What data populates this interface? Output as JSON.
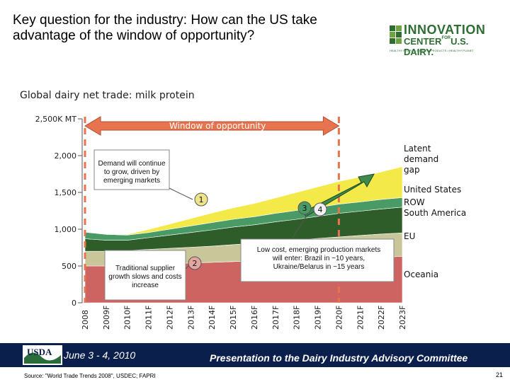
{
  "slide": {
    "title": "Key question for the industry: How can the US take advantage of the window of opportunity?",
    "logo_line1": "INNOVATION",
    "logo_line2": "CENTER",
    "logo_for": "FOR",
    "logo_line3": "U.S. DAIRY.",
    "logo_tag": "HEALTHY PEOPLE • HEALTHY PRODUCTS • HEALTHY PLANET",
    "footer_date": "June 3 - 4, 2010",
    "footer_presentation": "Presentation to the Dairy Industry Advisory Committee",
    "usda_label": "USDA",
    "source": "Source: \"World Trade Trends 2008\", USDEC; FAPRI",
    "page_number": "21",
    "colors": {
      "footer": "#0b1f4d",
      "logo_green": "#2f6e33"
    }
  },
  "chart_data": {
    "type": "area",
    "title": "Global dairy net trade: milk protein",
    "y_unit_label": "2,500K MT",
    "y_ticks": [
      "2,500K MT",
      "2,000",
      "1,500",
      "1,000",
      "500",
      "0"
    ],
    "y_tick_values": [
      2500,
      2000,
      1500,
      1000,
      500,
      0
    ],
    "ylim": [
      0,
      2500
    ],
    "x": [
      "2008",
      "2009F",
      "2010F",
      "2011F",
      "2012F",
      "2013F",
      "2014F",
      "2015F",
      "2016F",
      "2017F",
      "2018F",
      "2019F",
      "2020F",
      "2021F",
      "2022F",
      "2023F"
    ],
    "stacked": true,
    "series": [
      {
        "name": "Oceania",
        "color": "#cd6461",
        "values": [
          500,
          500,
          510,
          520,
          530,
          540,
          550,
          560,
          570,
          580,
          590,
          600,
          610,
          615,
          620,
          630
        ]
      },
      {
        "name": "EU",
        "color": "#c9c79a",
        "values": [
          200,
          200,
          200,
          205,
          210,
          215,
          220,
          230,
          240,
          250,
          265,
          275,
          285,
          300,
          315,
          320
        ]
      },
      {
        "name": "ROW South America",
        "color": "#2f5d2a",
        "values": [
          170,
          150,
          140,
          160,
          180,
          200,
          220,
          240,
          250,
          270,
          280,
          300,
          320,
          330,
          340,
          350
        ]
      },
      {
        "name": "United States",
        "color": "#4a9a66",
        "values": [
          90,
          80,
          70,
          70,
          80,
          90,
          100,
          105,
          110,
          115,
          120,
          120,
          125,
          125,
          130,
          130
        ]
      },
      {
        "name": "Latent demand gap",
        "color": "#f3ea4a",
        "values": [
          0,
          0,
          10,
          40,
          70,
          100,
          130,
          155,
          180,
          210,
          245,
          280,
          310,
          340,
          375,
          420
        ]
      }
    ],
    "legend": [
      "Latent demand gap",
      "United States",
      "ROW South America",
      "EU",
      "Oceania"
    ],
    "legend_placement": "right",
    "window_label": "Window of opportunity",
    "annotations": [
      {
        "text": "Demand will continue to grow, driven by emerging markets",
        "marker": "1"
      },
      {
        "text": "Traditional supplier growth slows and costs increase",
        "marker": "2"
      },
      {
        "text": "Low cost, emerging production markets will enter:  Brazil in ~10 years, Ukraine/Belarus in ~15 years",
        "marker": "3"
      }
    ],
    "markers": [
      "1",
      "2",
      "3",
      "4"
    ]
  }
}
